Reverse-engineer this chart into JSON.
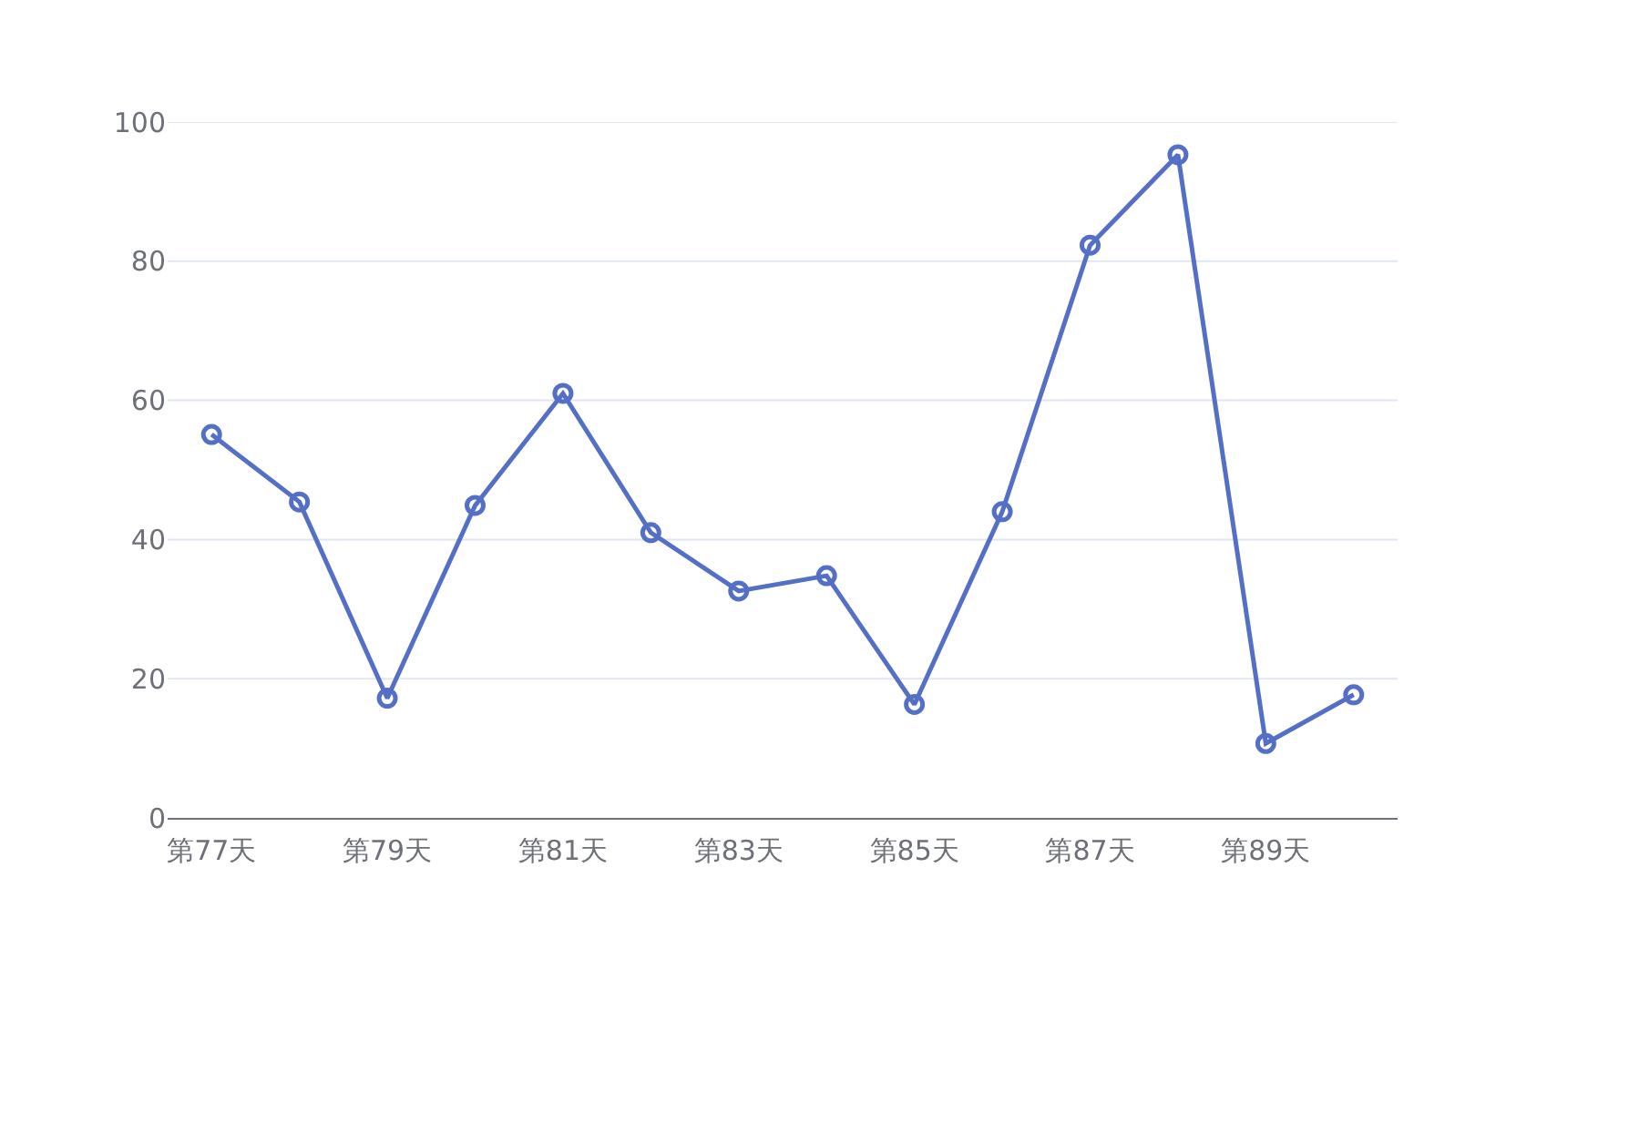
{
  "chart_data": {
    "type": "line",
    "categories": [
      "第77天",
      null,
      "第79天",
      null,
      "第81天",
      null,
      "第83天",
      null,
      "第85天",
      null,
      "第87天",
      null,
      "第89天",
      null
    ],
    "series": [
      {
        "color": "#5470c6",
        "values": [
          55.1,
          45.4,
          17.2,
          44.9,
          61,
          41,
          32.6,
          34.8,
          16.3,
          44,
          82.3,
          95.3,
          10.7,
          17.7
        ]
      }
    ],
    "ylim": [
      0,
      100
    ],
    "yticks": [
      0,
      20,
      40,
      60,
      80,
      100
    ],
    "grid": "y",
    "marker": "circle",
    "line_style": "solid"
  }
}
